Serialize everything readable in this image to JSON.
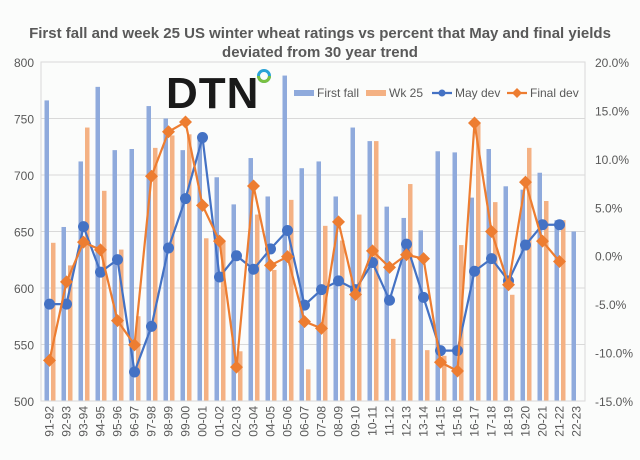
{
  "chart_data": {
    "type": "bar+line",
    "title": "First fall and week 25 US winter wheat ratings vs percent that May and final yields deviated from 30 year trend",
    "xlabel": "",
    "ylabel": "",
    "y2label": "",
    "ylim": [
      500,
      800
    ],
    "y2lim": [
      -15,
      20
    ],
    "yticks": [
      "800",
      "750",
      "700",
      "650",
      "600",
      "550",
      "500"
    ],
    "yticks_values": [
      800,
      750,
      700,
      650,
      600,
      550,
      500
    ],
    "y2ticks": [
      "20.0%",
      "15.0%",
      "10.0%",
      "5.0%",
      "0.0%",
      "-5.0%",
      "-10.0%",
      "-15.0%"
    ],
    "y2ticks_values": [
      20,
      15,
      10,
      5,
      0,
      -5,
      -10,
      -15
    ],
    "grid": true,
    "legend_position": "top-right",
    "categories": [
      "91-92",
      "92-93",
      "93-94",
      "94-95",
      "95-96",
      "96-97",
      "97-98",
      "98-99",
      "99-00",
      "00-01",
      "01-02",
      "02-03",
      "03-04",
      "04-05",
      "05-06",
      "06-07",
      "07-08",
      "08-09",
      "09-10",
      "10-11",
      "11-12",
      "12-13",
      "13-14",
      "14-15",
      "15-16",
      "16-17",
      "17-18",
      "18-19",
      "19-20",
      "20-21",
      "21-22",
      "22-23"
    ],
    "series": [
      {
        "name": "First fall",
        "type": "bar",
        "axis": "left",
        "color": "#8faadc",
        "values": [
          766,
          654,
          712,
          778,
          722,
          723,
          761,
          750,
          722,
          733,
          698,
          674,
          715,
          681,
          788,
          706,
          712,
          681,
          742,
          730,
          672,
          662,
          651,
          721,
          720,
          680,
          723,
          690,
          687,
          702,
          660,
          650
        ]
      },
      {
        "name": "Wk 25",
        "type": "bar",
        "axis": "left",
        "color": "#f4b183",
        "values": [
          640,
          620,
          742,
          686,
          634,
          575,
          724,
          735,
          736,
          644,
          642,
          544,
          665,
          616,
          678,
          528,
          655,
          642,
          665,
          730,
          555,
          692,
          545,
          540,
          638,
          746,
          676,
          594,
          724,
          677,
          660,
          null
        ]
      },
      {
        "name": "May dev",
        "type": "line",
        "axis": "right",
        "color": "#4472c4",
        "marker": "circle",
        "values": [
          -5.0,
          -5.0,
          3.0,
          -1.7,
          -0.4,
          -12.0,
          -7.3,
          0.8,
          5.9,
          12.2,
          -2.2,
          0.0,
          -1.4,
          0.7,
          2.6,
          -5.1,
          -3.5,
          -2.6,
          -3.5,
          -0.7,
          -4.6,
          1.2,
          -4.3,
          -9.8,
          -9.8,
          -1.6,
          -0.3,
          -2.6,
          1.1,
          3.2,
          3.2,
          null
        ]
      },
      {
        "name": "Final dev",
        "type": "line",
        "axis": "right",
        "color": "#ed7d31",
        "marker": "diamond",
        "values": [
          -10.8,
          -2.7,
          1.4,
          0.6,
          -6.7,
          -9.2,
          8.2,
          12.8,
          13.8,
          5.2,
          1.5,
          -11.5,
          7.2,
          -1.0,
          -0.1,
          -6.8,
          -7.5,
          3.5,
          -4.0,
          0.5,
          -1.2,
          0.1,
          -0.3,
          -11.0,
          -11.9,
          13.7,
          2.5,
          -3.0,
          7.6,
          1.5,
          -0.6,
          null
        ]
      }
    ]
  },
  "logo": {
    "text": "DTN"
  }
}
